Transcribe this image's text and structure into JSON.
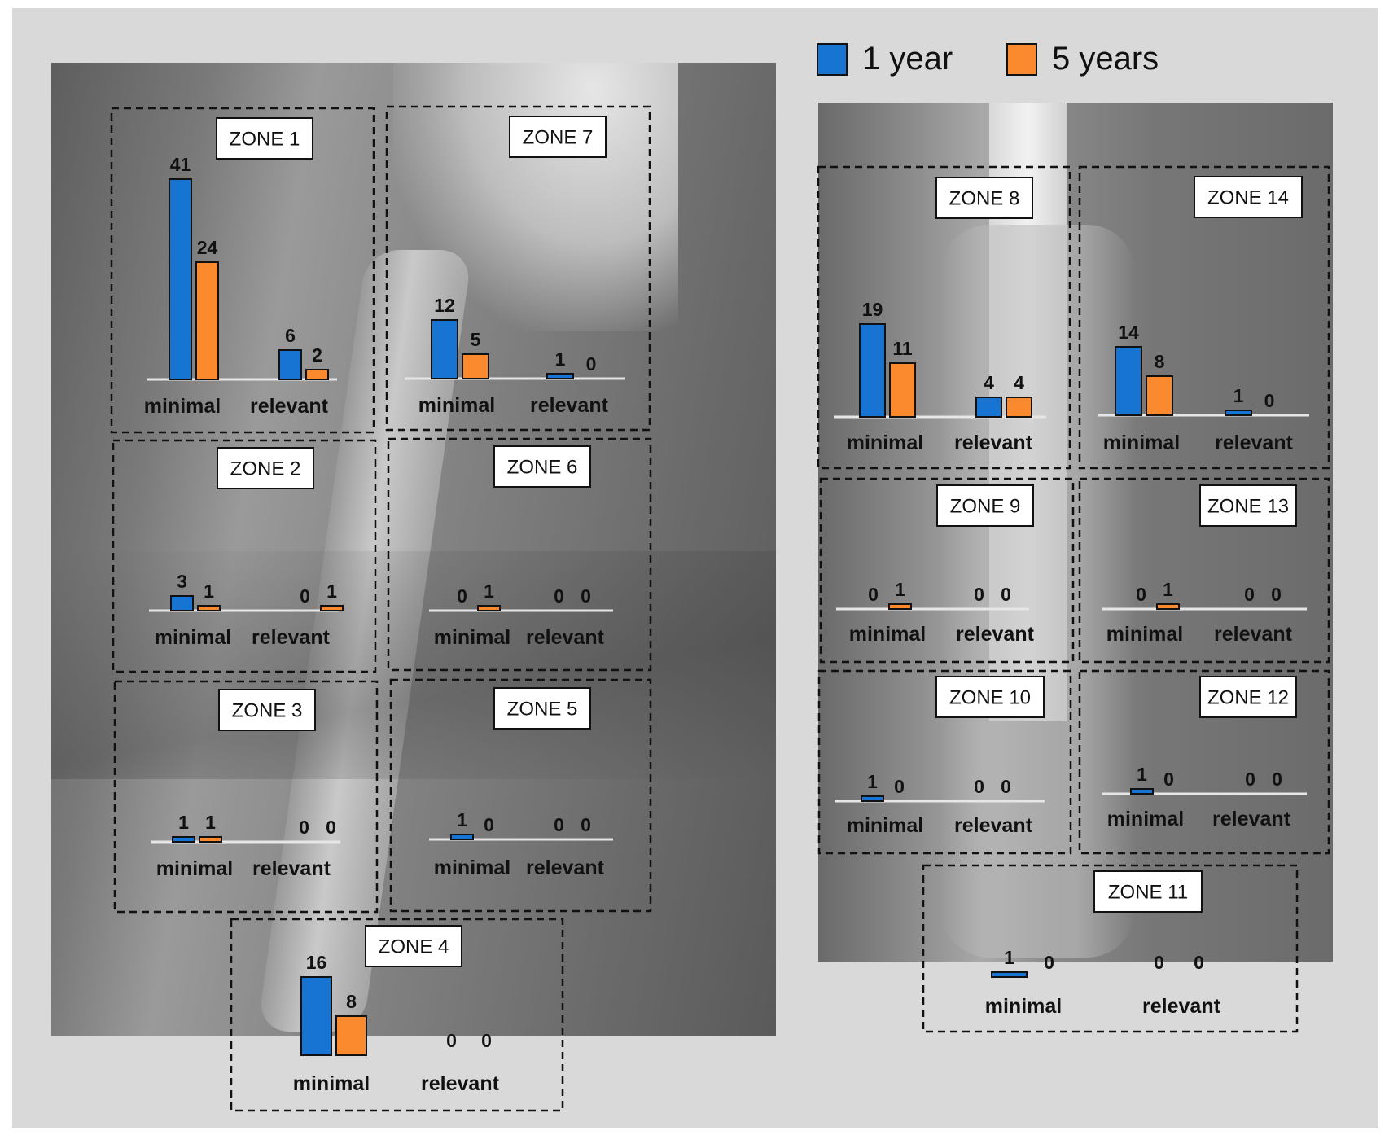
{
  "legend": [
    {
      "label": "1 year",
      "color": "#1874d2"
    },
    {
      "label": "5 years",
      "color": "#fb8a2e"
    }
  ],
  "chart_data": {
    "type": "bar",
    "categories": [
      "minimal",
      "relevant"
    ],
    "series_names": [
      "1 year",
      "5 years"
    ],
    "zones": [
      {
        "zone": "ZONE 1",
        "minimal": [
          41,
          24
        ],
        "relevant": [
          6,
          2
        ]
      },
      {
        "zone": "ZONE 2",
        "minimal": [
          3,
          1
        ],
        "relevant": [
          0,
          1
        ]
      },
      {
        "zone": "ZONE 3",
        "minimal": [
          1,
          1
        ],
        "relevant": [
          0,
          0
        ]
      },
      {
        "zone": "ZONE 4",
        "minimal": [
          16,
          8
        ],
        "relevant": [
          0,
          0
        ]
      },
      {
        "zone": "ZONE 5",
        "minimal": [
          1,
          0
        ],
        "relevant": [
          0,
          0
        ]
      },
      {
        "zone": "ZONE 6",
        "minimal": [
          0,
          1
        ],
        "relevant": [
          0,
          0
        ]
      },
      {
        "zone": "ZONE 7",
        "minimal": [
          12,
          5
        ],
        "relevant": [
          1,
          0
        ]
      },
      {
        "zone": "ZONE 8",
        "minimal": [
          19,
          11
        ],
        "relevant": [
          4,
          4
        ]
      },
      {
        "zone": "ZONE 9",
        "minimal": [
          0,
          1
        ],
        "relevant": [
          0,
          0
        ]
      },
      {
        "zone": "ZONE 10",
        "minimal": [
          1,
          0
        ],
        "relevant": [
          0,
          0
        ]
      },
      {
        "zone": "ZONE 11",
        "minimal": [
          1,
          0
        ],
        "relevant": [
          0,
          0
        ]
      },
      {
        "zone": "ZONE 12",
        "minimal": [
          1,
          0
        ],
        "relevant": [
          0,
          0
        ]
      },
      {
        "zone": "ZONE 13",
        "minimal": [
          0,
          1
        ],
        "relevant": [
          0,
          0
        ]
      },
      {
        "zone": "ZONE 14",
        "minimal": [
          14,
          8
        ],
        "relevant": [
          1,
          0
        ]
      }
    ]
  }
}
